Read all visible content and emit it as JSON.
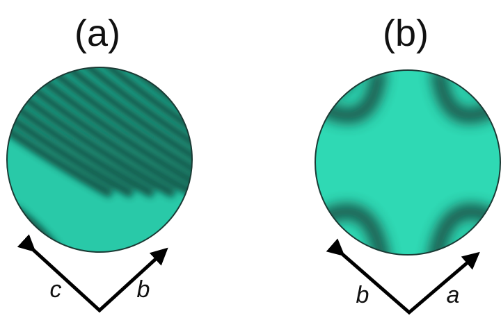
{
  "panels": [
    {
      "label": "(a)",
      "axes": [
        "c",
        "b"
      ]
    },
    {
      "label": "(b)",
      "axes": [
        "b",
        "a"
      ]
    }
  ]
}
